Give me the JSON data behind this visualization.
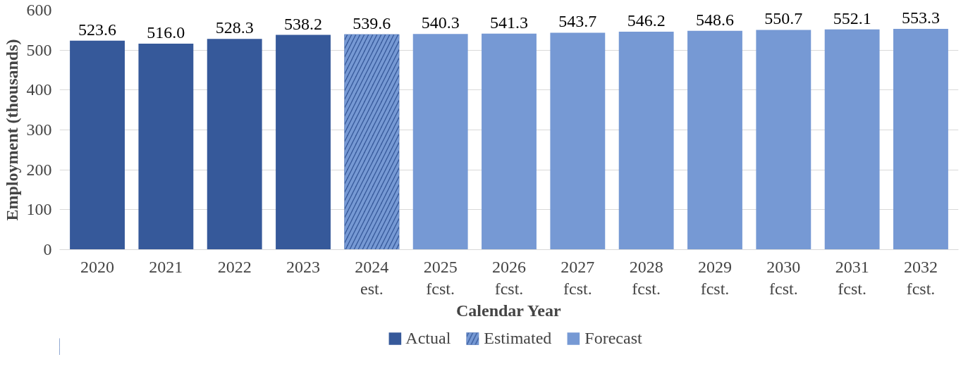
{
  "chart_data": {
    "type": "bar",
    "xlabel": "Calendar Year",
    "ylabel": "Employment (thousands)",
    "categories": [
      "2020",
      "2021",
      "2022",
      "2023",
      "2024\nest.",
      "2025\nfcst.",
      "2026\nfcst.",
      "2027\nfcst.",
      "2028\nfcst.",
      "2029\nfcst.",
      "2030\nfcst.",
      "2031\nfcst.",
      "2032\nfcst."
    ],
    "series": [
      {
        "name": "Actual",
        "color": "#36599a",
        "values": [
          523.6,
          516.0,
          528.3,
          538.2,
          null,
          null,
          null,
          null,
          null,
          null,
          null,
          null,
          null
        ],
        "value_labels": [
          "523.6",
          "516.0",
          "528.3",
          "538.2",
          null,
          null,
          null,
          null,
          null,
          null,
          null,
          null,
          null
        ]
      },
      {
        "name": "Estimated",
        "color": "#36599a",
        "values": [
          null,
          null,
          null,
          null,
          539.6,
          null,
          null,
          null,
          null,
          null,
          null,
          null,
          null
        ]
      },
      {
        "name": "Forecast",
        "color": "#7699d4",
        "values": [
          null,
          null,
          null,
          null,
          null,
          540.3,
          541.3,
          543.7,
          546.2,
          548.6,
          550.7,
          552.1,
          553.3
        ]
      }
    ],
    "ylim": [
      0,
      600
    ],
    "yticks": [
      0,
      100,
      200,
      300,
      400,
      500,
      600
    ],
    "grid": "y",
    "legend": "bottom",
    "data_labels": true
  }
}
